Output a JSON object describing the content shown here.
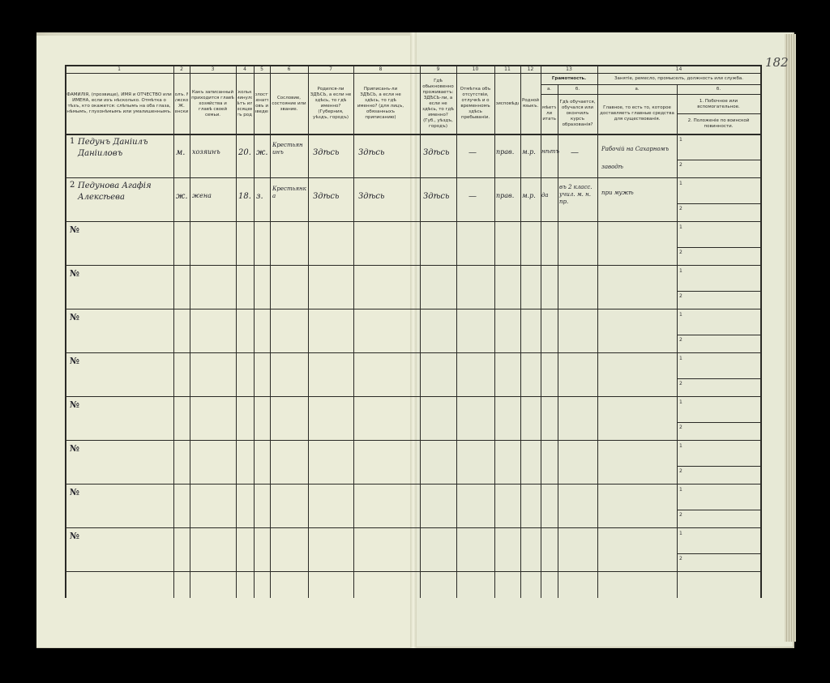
{
  "page_number": "182",
  "columns": [
    {
      "num": "1",
      "header": "ФАМИЛІЯ, (прозвище), ИМЯ и ОТЧЕСТВО или ИМЕНА, если ихъ нѣсколько. Отмѣтка о тѣхъ, кто окажется: слѣпымъ на оба глаза, нѣмымъ, глухонѣмымъ или умалишеннымъ."
    },
    {
      "num": "2",
      "header": "Полъ. М. мужской. Ж. женский."
    },
    {
      "num": "3",
      "header": "Какъ записанный приходится главѣ хозяйства и главѣ своей семьи."
    },
    {
      "num": "4",
      "header": "Сколько минуло лѣтъ или месяцевъ отъ роду."
    },
    {
      "num": "5",
      "header": "Холостъ, женатъ, вдовъ или разведенъ."
    },
    {
      "num": "6",
      "header": "Сословие, состояние или звание."
    },
    {
      "num": "7",
      "header": "Родился-ли ЗДѢСЬ, а если не здѣсь, то гдѣ именно? (Губерния, уѣздъ, городъ)"
    },
    {
      "num": "8",
      "header": "Приписанъ-ли ЗДѢСЬ, а если не здѣсь, то гдѣ именно? (для лицъ, обязанныхъ приписанию)"
    },
    {
      "num": "9",
      "header": "Гдѣ обыкновенно проживаетъ: ЗДѢСЬ-ли, а если не здѣсь, то гдѣ именно? (Губ., уѣздъ, городъ)"
    },
    {
      "num": "10",
      "header": "Отмѣтка объ отсутствіи, отлучкѣ и о временномъ здѣсь пребываніи."
    },
    {
      "num": "11",
      "header": "Вѣроисповѣданіе."
    },
    {
      "num": "12",
      "header": "Родной языкъ."
    },
    {
      "num": "13а",
      "header": "Умѣетъ-ли читать?"
    },
    {
      "num": "13б",
      "header": "Гдѣ обучается, обучался или окончилъ курсъ образованія?"
    },
    {
      "num": "14а",
      "header": "Главное, то есть то, которое доставляетъ главные средства для существованія."
    }
  ],
  "group_headers": {
    "col13": "Грамотность.",
    "col13_a": "а.",
    "col13_b": "б.",
    "col14": "Занятіе, ремесло, промыселъ, должность или служба.",
    "col14_a": "а.",
    "col14_b": "б.",
    "col14_b1": "1. Побочное или вспомогательное.",
    "col14_b2": "2. Положеніе по воинской повинности."
  },
  "rows": [
    {
      "n": "1",
      "name": "Педунъ Даніилъ Даніиловъ",
      "sex": "м.",
      "relation": "хозяинъ",
      "age": "20.",
      "marital": "ж.",
      "estate": "Крестьянинъ",
      "born": "Здѣсь",
      "registered": "Здѣсь",
      "resides": "Здѣсь",
      "absence": "—",
      "religion": "прав.",
      "language": "м.р.",
      "reads": "нѣтъ",
      "education": "—",
      "occupation": "Рабочій на Сахарномъ заводѣ"
    },
    {
      "n": "2",
      "name": "Педунова Агафія Алексѣева",
      "sex": "ж.",
      "relation": "жена",
      "age": "18.",
      "marital": "з.",
      "estate": "Крестьянка",
      "born": "Здѣсь",
      "registered": "Здѣсь",
      "resides": "Здѣсь",
      "absence": "—",
      "religion": "прав.",
      "language": "м.р.",
      "reads": "да",
      "education": "въ 2 класс. учил. м. н. пр.",
      "occupation": "при мужѣ"
    }
  ],
  "row_marker": "№",
  "sub_labels": [
    "1",
    "2"
  ]
}
